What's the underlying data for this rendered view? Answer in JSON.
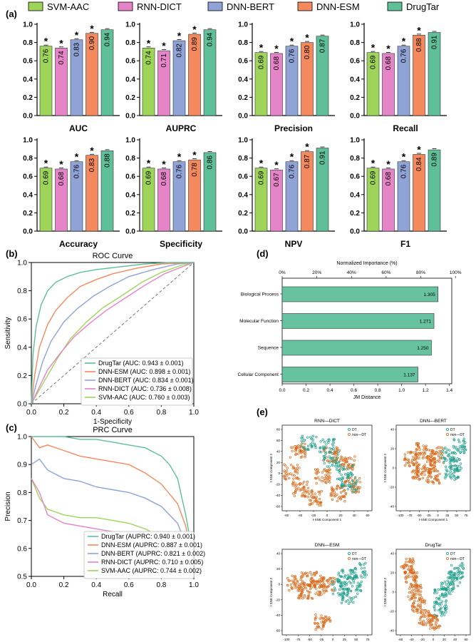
{
  "chart_data": {
    "type": "composite",
    "colors": {
      "SVM-AAC": "#9fd45a",
      "RNN-DICT": "#e584c6",
      "DNN-BERT": "#8fa3d6",
      "DNN-ESM": "#f5895e",
      "DrugTar": "#5fbf99",
      "axis": "#000000",
      "teal": "#1f9f8a",
      "orange": "#d9691a"
    },
    "legend": [
      "SVM-AAC",
      "RNN-DICT",
      "DNN-BERT",
      "DNN-ESM",
      "DrugTar"
    ],
    "panel_labels": {
      "a": "(a)",
      "b": "(b)",
      "c": "(c)",
      "d": "(d)",
      "e": "(e)"
    },
    "metrics_panel": {
      "ylim": [
        0,
        1.0
      ],
      "yticks": [
        "0.0",
        "0.2",
        "0.4",
        "0.6",
        "0.8",
        "1.0"
      ],
      "star": "*",
      "charts": [
        {
          "title": "AUC",
          "values": [
            0.76,
            0.74,
            0.83,
            0.9,
            0.94
          ],
          "labels": [
            "0.76",
            "0.74",
            "0.83",
            "0.90",
            "0.94"
          ]
        },
        {
          "title": "AUPRC",
          "values": [
            0.74,
            0.71,
            0.82,
            0.89,
            0.94
          ],
          "labels": [
            "0.74",
            "0.71",
            "0.82",
            "0.89",
            "0.94"
          ]
        },
        {
          "title": "Precision",
          "values": [
            0.69,
            0.68,
            0.76,
            0.8,
            0.87
          ],
          "labels": [
            "0.69",
            "0.68",
            "0.76",
            "0.80",
            "0.87"
          ]
        },
        {
          "title": "Recall",
          "values": [
            0.69,
            0.68,
            0.76,
            0.88,
            0.91
          ],
          "labels": [
            "0.69",
            "0.68",
            "0.76",
            "0.88",
            "0.91"
          ]
        },
        {
          "title": "Accuracy",
          "values": [
            0.69,
            0.68,
            0.76,
            0.83,
            0.88
          ],
          "labels": [
            "0.69",
            "0.68",
            "0.76",
            "0.83",
            "0.88"
          ]
        },
        {
          "title": "Specificity",
          "values": [
            0.69,
            0.68,
            0.76,
            0.78,
            0.86
          ],
          "labels": [
            "0.69",
            "0.68",
            "0.76",
            "0.78",
            "0.86"
          ]
        },
        {
          "title": "NPV",
          "values": [
            0.69,
            0.67,
            0.76,
            0.87,
            0.91
          ],
          "labels": [
            "0.69",
            "0.67",
            "0.76",
            "0.87",
            "0.91"
          ]
        },
        {
          "title": "F1",
          "values": [
            0.69,
            0.68,
            0.76,
            0.84,
            0.89
          ],
          "labels": [
            "0.69",
            "0.68",
            "0.76",
            "0.84",
            "0.89"
          ]
        }
      ]
    },
    "roc": {
      "title": "ROC Curve",
      "xlabel": "1-Specificity",
      "ylabel": "Sensitivity",
      "xticks": [
        "0.0",
        "0.2",
        "0.4",
        "0.6",
        "0.8",
        "1.0"
      ],
      "yticks": [
        "0.0",
        "0.2",
        "0.4",
        "0.6",
        "0.8",
        "1.0"
      ],
      "series": [
        {
          "model": "DrugTar",
          "label": "DrugTar (AUC: 0.943 ± 0.001)",
          "x": [
            0,
            0.01,
            0.03,
            0.06,
            0.1,
            0.15,
            0.22,
            0.3,
            0.4,
            0.55,
            0.7,
            0.85,
            1.0
          ],
          "y": [
            0,
            0.35,
            0.55,
            0.7,
            0.8,
            0.86,
            0.9,
            0.93,
            0.95,
            0.97,
            0.99,
            1.0,
            1.0
          ]
        },
        {
          "model": "DNN-ESM",
          "label": "DNN-ESM (AUC: 0.898 ± 0.001)",
          "x": [
            0,
            0.02,
            0.05,
            0.1,
            0.15,
            0.22,
            0.3,
            0.4,
            0.5,
            0.65,
            0.8,
            1.0
          ],
          "y": [
            0,
            0.2,
            0.4,
            0.56,
            0.66,
            0.75,
            0.83,
            0.88,
            0.92,
            0.96,
            0.99,
            1.0
          ]
        },
        {
          "model": "DNN-BERT",
          "label": "DNN-BERT (AUC: 0.834 ± 0.001)",
          "x": [
            0,
            0.03,
            0.07,
            0.12,
            0.2,
            0.28,
            0.38,
            0.48,
            0.6,
            0.75,
            0.9,
            1.0
          ],
          "y": [
            0,
            0.14,
            0.3,
            0.44,
            0.58,
            0.67,
            0.76,
            0.83,
            0.9,
            0.95,
            0.99,
            1.0
          ]
        },
        {
          "model": "RNN-DICT",
          "label": "RNN-DICT (AUC: 0.736 ± 0.008)",
          "x": [
            0,
            0.05,
            0.1,
            0.18,
            0.26,
            0.36,
            0.46,
            0.58,
            0.7,
            0.82,
            0.93,
            1.0
          ],
          "y": [
            0,
            0.12,
            0.24,
            0.36,
            0.47,
            0.57,
            0.66,
            0.75,
            0.84,
            0.92,
            0.97,
            1.0
          ]
        },
        {
          "model": "SVM-AAC",
          "label": "SVM-AAC (AUC: 0.760 ± 0.003)",
          "x": [
            0,
            0.05,
            0.1,
            0.16,
            0.24,
            0.34,
            0.44,
            0.55,
            0.68,
            0.8,
            0.92,
            1.0
          ],
          "y": [
            0,
            0.1,
            0.2,
            0.32,
            0.46,
            0.58,
            0.68,
            0.76,
            0.86,
            0.93,
            0.98,
            1.0
          ]
        }
      ]
    },
    "prc": {
      "title": "PRC Curve",
      "xlabel": "Recall",
      "ylabel": "Precision",
      "xticks": [
        "0.0",
        "0.2",
        "0.4",
        "0.6",
        "0.8",
        "1.0"
      ],
      "yticks": [
        "0.5",
        "0.6",
        "0.7",
        "0.8",
        "0.9",
        "1.0"
      ],
      "ylim": [
        0.5,
        1.0
      ],
      "series": [
        {
          "model": "DrugTar",
          "label": "DrugTar (AUPRC: 0.940 ± 0.001)",
          "x": [
            0,
            0.02,
            0.1,
            0.2,
            0.3,
            0.4,
            0.5,
            0.6,
            0.7,
            0.8,
            0.85,
            0.9,
            0.95,
            1.0
          ],
          "y": [
            1.0,
            1.0,
            1.0,
            1.0,
            0.99,
            0.99,
            0.98,
            0.97,
            0.96,
            0.93,
            0.9,
            0.85,
            0.72,
            0.56
          ]
        },
        {
          "model": "DNN-ESM",
          "label": "DNN-ESM (AUPRC: 0.887 ± 0.001)",
          "x": [
            0,
            0.05,
            0.1,
            0.2,
            0.3,
            0.4,
            0.5,
            0.6,
            0.7,
            0.8,
            0.9,
            0.95,
            1.0
          ],
          "y": [
            1.0,
            0.96,
            0.97,
            0.95,
            0.93,
            0.92,
            0.91,
            0.9,
            0.87,
            0.83,
            0.76,
            0.68,
            0.55
          ]
        },
        {
          "model": "DNN-BERT",
          "label": "DNN-BERT (AUPRC: 0.821 ± 0.002)",
          "x": [
            0,
            0.05,
            0.1,
            0.2,
            0.3,
            0.4,
            0.5,
            0.6,
            0.7,
            0.8,
            0.9,
            1.0
          ],
          "y": [
            0.9,
            0.92,
            0.88,
            0.85,
            0.84,
            0.82,
            0.81,
            0.8,
            0.78,
            0.75,
            0.69,
            0.54
          ]
        },
        {
          "model": "RNN-DICT",
          "label": "RNN-DICT (AUPRC: 0.710 ± 0.005)",
          "x": [
            0,
            0.05,
            0.1,
            0.2,
            0.3,
            0.4,
            0.5,
            0.6,
            0.7,
            0.8,
            0.9,
            1.0
          ],
          "y": [
            0.85,
            0.8,
            0.72,
            0.69,
            0.68,
            0.67,
            0.66,
            0.65,
            0.63,
            0.61,
            0.58,
            0.53
          ]
        },
        {
          "model": "SVM-AAC",
          "label": "SVM-AAC (AUPRC: 0.744 ± 0.002)",
          "x": [
            0,
            0.05,
            0.1,
            0.2,
            0.3,
            0.4,
            0.5,
            0.6,
            0.7,
            0.8,
            0.9,
            1.0
          ],
          "y": [
            0.85,
            0.78,
            0.74,
            0.72,
            0.71,
            0.71,
            0.7,
            0.69,
            0.67,
            0.64,
            0.6,
            0.53
          ]
        }
      ]
    },
    "importance": {
      "type": "bar",
      "top_label": "Normalized Importance (%)",
      "top_ticks": [
        "0%",
        "20%",
        "40%",
        "60%",
        "80%",
        "100%"
      ],
      "xlabel": "JM Distance",
      "xticks": [
        "0.0",
        "0.2",
        "0.4",
        "0.6",
        "0.8",
        "1.0",
        "1.2",
        "1.4"
      ],
      "xlim": [
        0,
        1.42
      ],
      "categories": [
        "Biological Process",
        "Molecular Function",
        "Sequence",
        "Cellular Component"
      ],
      "values": [
        1.305,
        1.271,
        1.25,
        1.137
      ],
      "labels": [
        "1.305",
        "1.271",
        "1.250",
        "1.137"
      ],
      "color": "#66c2a0"
    },
    "tsne": {
      "xlabel": "t-SNE Component 1",
      "ylabel": "t-SNE Component 2",
      "legend": [
        "DT",
        "non—DT"
      ],
      "plots": [
        {
          "title": "RNN—DICT",
          "xticks": [
            "-60",
            "-40",
            "-20",
            "0",
            "20",
            "40",
            "60"
          ],
          "yticks": [
            "80",
            "60",
            "40",
            "20",
            "0",
            "-20",
            "-40",
            "-60"
          ]
        },
        {
          "title": "DNN—BERT",
          "xticks": [
            "-100",
            "-75",
            "-50",
            "-25",
            "0",
            "25",
            "50",
            "75"
          ],
          "yticks": [
            "40",
            "20",
            "0",
            "-20",
            "-40"
          ]
        },
        {
          "title": "DNN—ESM",
          "xticks": [
            "-100",
            "-75",
            "-50",
            "-25",
            "0",
            "25",
            "50",
            "75"
          ],
          "yticks": [
            "40",
            "20",
            "0",
            "-20",
            "-40",
            "-60"
          ]
        },
        {
          "title": "DrugTar",
          "xticks": [
            "-60",
            "-40",
            "-20",
            "0",
            "20",
            "40",
            "60"
          ],
          "yticks": [
            "40",
            "20",
            "0",
            "-20",
            "-40"
          ]
        }
      ]
    }
  }
}
